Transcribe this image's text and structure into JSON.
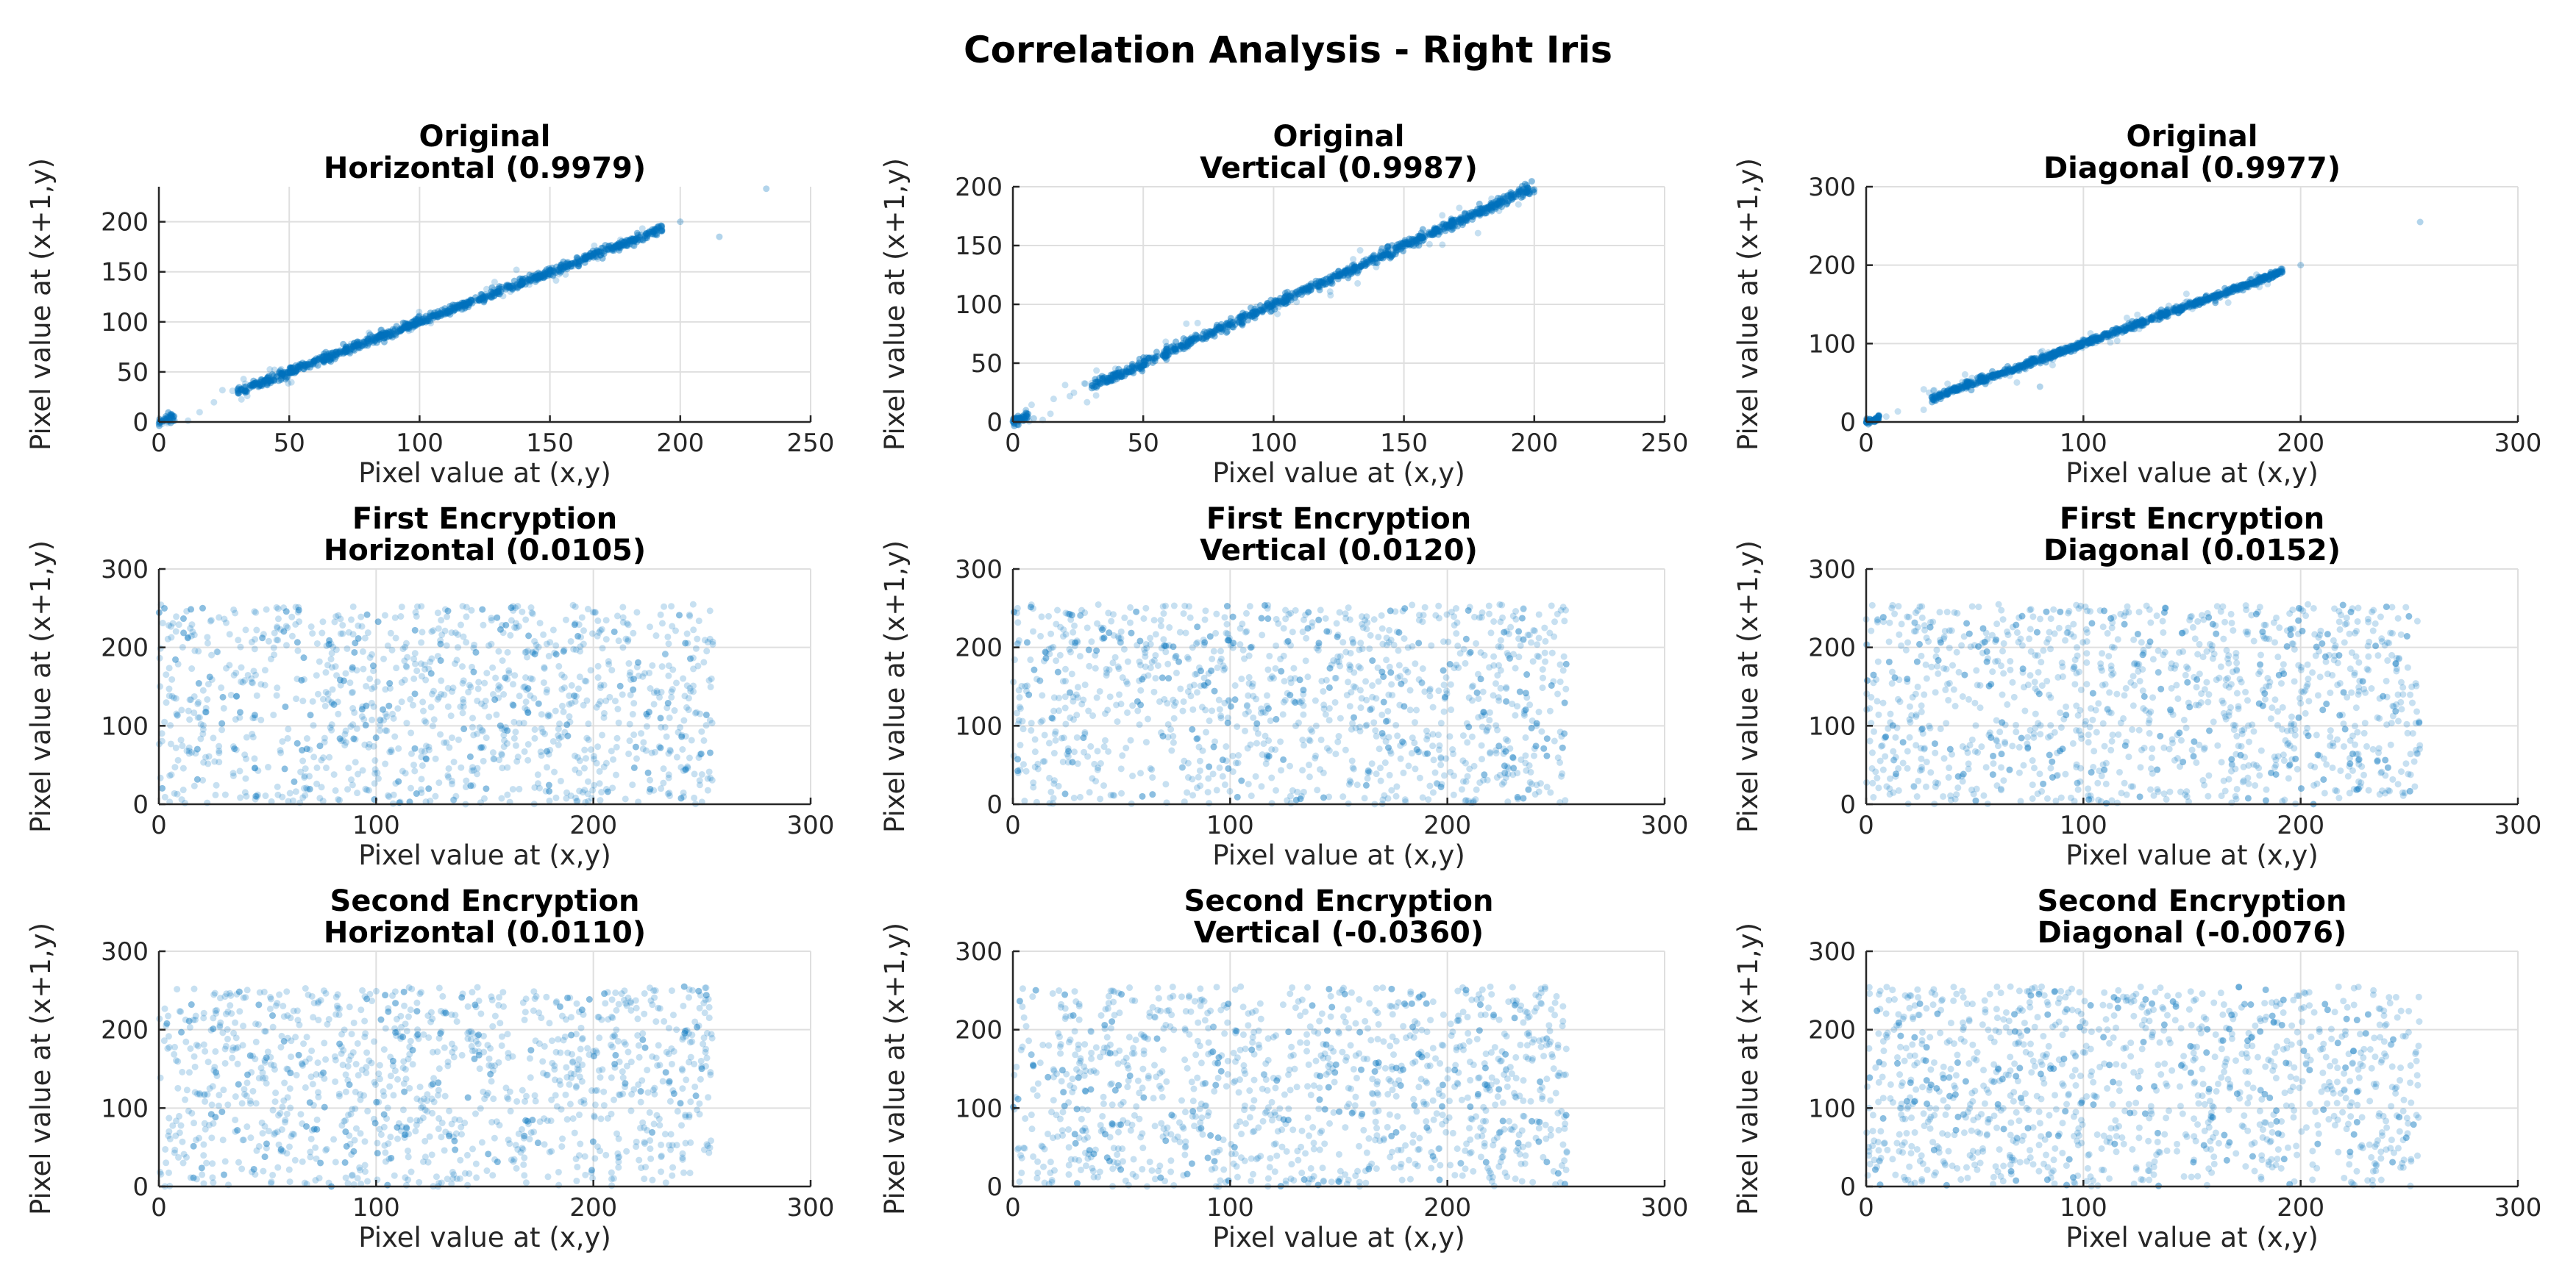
{
  "figure": {
    "title": "Correlation Analysis - Right Iris",
    "marker_color": "#0072BD"
  },
  "chart_data": [
    {
      "type": "scatter",
      "row": 0,
      "col": 0,
      "title_line1": "Original",
      "title_line2": "Horizontal (0.9979)",
      "coefficient": 0.9979,
      "xlabel": "Pixel value at (x,y)",
      "ylabel": "Pixel value at (x+1,y)",
      "xlim": [
        0,
        250
      ],
      "ylim": [
        0,
        235
      ],
      "xticks": [
        0,
        50,
        100,
        150,
        200,
        250
      ],
      "yticks": [
        0,
        50,
        100,
        150,
        200
      ],
      "grid": true,
      "pattern": "linear",
      "data_range": [
        0,
        193
      ],
      "outlier_points": [
        [
          233,
          233
        ],
        [
          215,
          185
        ],
        [
          200,
          200
        ]
      ]
    },
    {
      "type": "scatter",
      "row": 0,
      "col": 1,
      "title_line1": "Original",
      "title_line2": "Vertical (0.9987)",
      "coefficient": 0.9987,
      "xlabel": "Pixel value at (x,y)",
      "ylabel": "Pixel value at (x+1,y)",
      "xlim": [
        0,
        250
      ],
      "ylim": [
        0,
        200
      ],
      "xticks": [
        0,
        50,
        100,
        150,
        200,
        250
      ],
      "yticks": [
        0,
        50,
        100,
        150,
        200
      ],
      "grid": true,
      "pattern": "linear",
      "data_range": [
        0,
        200
      ],
      "outlier_points": [
        [
          5,
          10
        ],
        [
          8,
          3
        ]
      ]
    },
    {
      "type": "scatter",
      "row": 0,
      "col": 2,
      "title_line1": "Original",
      "title_line2": "Diagonal (0.9977)",
      "coefficient": 0.9977,
      "xlabel": "Pixel value at (x,y)",
      "ylabel": "Pixel value at (x+1,y)",
      "xlim": [
        0,
        300
      ],
      "ylim": [
        0,
        300
      ],
      "xticks": [
        0,
        100,
        200,
        300
      ],
      "yticks": [
        0,
        100,
        200,
        300
      ],
      "grid": true,
      "pattern": "linear",
      "data_range": [
        0,
        192
      ],
      "outlier_points": [
        [
          255,
          255
        ],
        [
          200,
          200
        ],
        [
          80,
          45
        ]
      ]
    },
    {
      "type": "scatter",
      "row": 1,
      "col": 0,
      "title_line1": "First Encryption",
      "title_line2": "Horizontal (0.0105)",
      "coefficient": 0.0105,
      "xlabel": "Pixel value at (x,y)",
      "ylabel": "Pixel value at (x+1,y)",
      "xlim": [
        0,
        300
      ],
      "ylim": [
        0,
        300
      ],
      "xticks": [
        0,
        100,
        200,
        300
      ],
      "yticks": [
        0,
        100,
        200,
        300
      ],
      "grid": true,
      "pattern": "uniform",
      "data_range": [
        0,
        255
      ],
      "outlier_points": []
    },
    {
      "type": "scatter",
      "row": 1,
      "col": 1,
      "title_line1": "First Encryption",
      "title_line2": "Vertical (0.0120)",
      "coefficient": 0.012,
      "xlabel": "Pixel value at (x,y)",
      "ylabel": "Pixel value at (x+1,y)",
      "xlim": [
        0,
        300
      ],
      "ylim": [
        0,
        300
      ],
      "xticks": [
        0,
        100,
        200,
        300
      ],
      "yticks": [
        0,
        100,
        200,
        300
      ],
      "grid": true,
      "pattern": "uniform",
      "data_range": [
        0,
        255
      ],
      "outlier_points": []
    },
    {
      "type": "scatter",
      "row": 1,
      "col": 2,
      "title_line1": "First Encryption",
      "title_line2": "Diagonal (0.0152)",
      "coefficient": 0.0152,
      "xlabel": "Pixel value at (x,y)",
      "ylabel": "Pixel value at (x+1,y)",
      "xlim": [
        0,
        300
      ],
      "ylim": [
        0,
        300
      ],
      "xticks": [
        0,
        100,
        200,
        300
      ],
      "yticks": [
        0,
        100,
        200,
        300
      ],
      "grid": true,
      "pattern": "uniform",
      "data_range": [
        0,
        255
      ],
      "outlier_points": []
    },
    {
      "type": "scatter",
      "row": 2,
      "col": 0,
      "title_line1": "Second Encryption",
      "title_line2": "Horizontal (0.0110)",
      "coefficient": 0.011,
      "xlabel": "Pixel value at (x,y)",
      "ylabel": "Pixel value at (x+1,y)",
      "xlim": [
        0,
        300
      ],
      "ylim": [
        0,
        300
      ],
      "xticks": [
        0,
        100,
        200,
        300
      ],
      "yticks": [
        0,
        100,
        200,
        300
      ],
      "grid": true,
      "pattern": "uniform",
      "data_range": [
        0,
        255
      ],
      "outlier_points": []
    },
    {
      "type": "scatter",
      "row": 2,
      "col": 1,
      "title_line1": "Second Encryption",
      "title_line2": "Vertical (-0.0360)",
      "coefficient": -0.036,
      "xlabel": "Pixel value at (x,y)",
      "ylabel": "Pixel value at (x+1,y)",
      "xlim": [
        0,
        300
      ],
      "ylim": [
        0,
        300
      ],
      "xticks": [
        0,
        100,
        200,
        300
      ],
      "yticks": [
        0,
        100,
        200,
        300
      ],
      "grid": true,
      "pattern": "uniform",
      "data_range": [
        0,
        255
      ],
      "outlier_points": []
    },
    {
      "type": "scatter",
      "row": 2,
      "col": 2,
      "title_line1": "Second Encryption",
      "title_line2": "Diagonal (-0.0076)",
      "coefficient": -0.0076,
      "xlabel": "Pixel value at (x,y)",
      "ylabel": "Pixel value at (x+1,y)",
      "xlim": [
        0,
        300
      ],
      "ylim": [
        0,
        300
      ],
      "xticks": [
        0,
        100,
        200,
        300
      ],
      "yticks": [
        0,
        100,
        200,
        300
      ],
      "grid": true,
      "pattern": "uniform",
      "data_range": [
        0,
        255
      ],
      "outlier_points": []
    }
  ]
}
